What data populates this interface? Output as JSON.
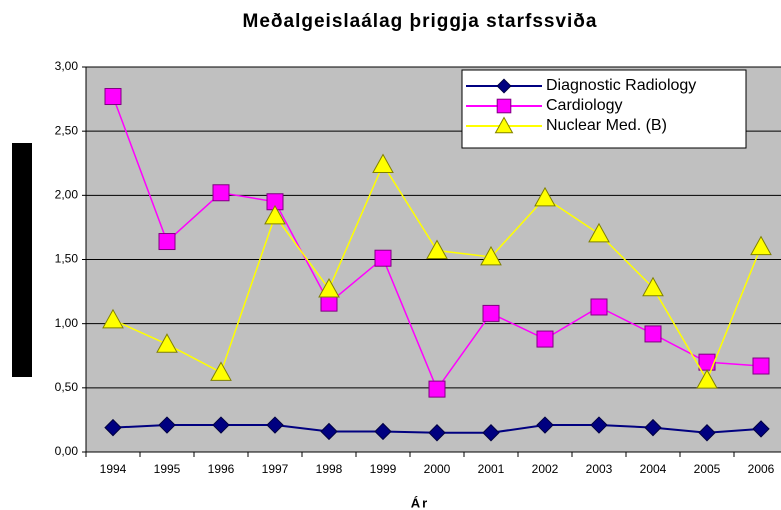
{
  "chart_data": {
    "type": "line",
    "title": "Meðalgeislaálag þriggja starfssviða",
    "x_label": "Ár",
    "categories": [
      "1994",
      "1995",
      "1996",
      "1997",
      "1998",
      "1999",
      "2000",
      "2001",
      "2002",
      "2003",
      "2004",
      "2005",
      "2006"
    ],
    "series": [
      {
        "name": "Diagnostic Radiology",
        "color": "#000080",
        "marker": "diamond",
        "values": [
          0.19,
          0.21,
          0.21,
          0.21,
          0.16,
          0.16,
          0.15,
          0.15,
          0.21,
          0.21,
          0.19,
          0.15,
          0.18
        ]
      },
      {
        "name": "Cardiology",
        "color": "#ff00ff",
        "marker": "square",
        "values": [
          2.77,
          1.64,
          2.02,
          1.95,
          1.16,
          1.51,
          0.49,
          1.08,
          0.88,
          1.13,
          0.92,
          0.7,
          0.67
        ]
      },
      {
        "name": "Nuclear Med. (B)",
        "color": "#ffff00",
        "marker": "triangle",
        "values": [
          1.03,
          0.84,
          0.62,
          1.84,
          1.27,
          2.24,
          1.57,
          1.52,
          1.98,
          1.7,
          1.28,
          0.56,
          1.6
        ]
      }
    ],
    "ylim": [
      0,
      3
    ],
    "yticks": [
      {
        "value": 0,
        "label": "0,00"
      },
      {
        "value": 0.5,
        "label": "0,50"
      },
      {
        "value": 1,
        "label": "1,00"
      },
      {
        "value": 1.5,
        "label": "1,50"
      },
      {
        "value": 2,
        "label": "2,00"
      },
      {
        "value": 2.5,
        "label": "2,50"
      },
      {
        "value": 3,
        "label": "3,00"
      }
    ],
    "grid": true,
    "legend": "top-right"
  }
}
